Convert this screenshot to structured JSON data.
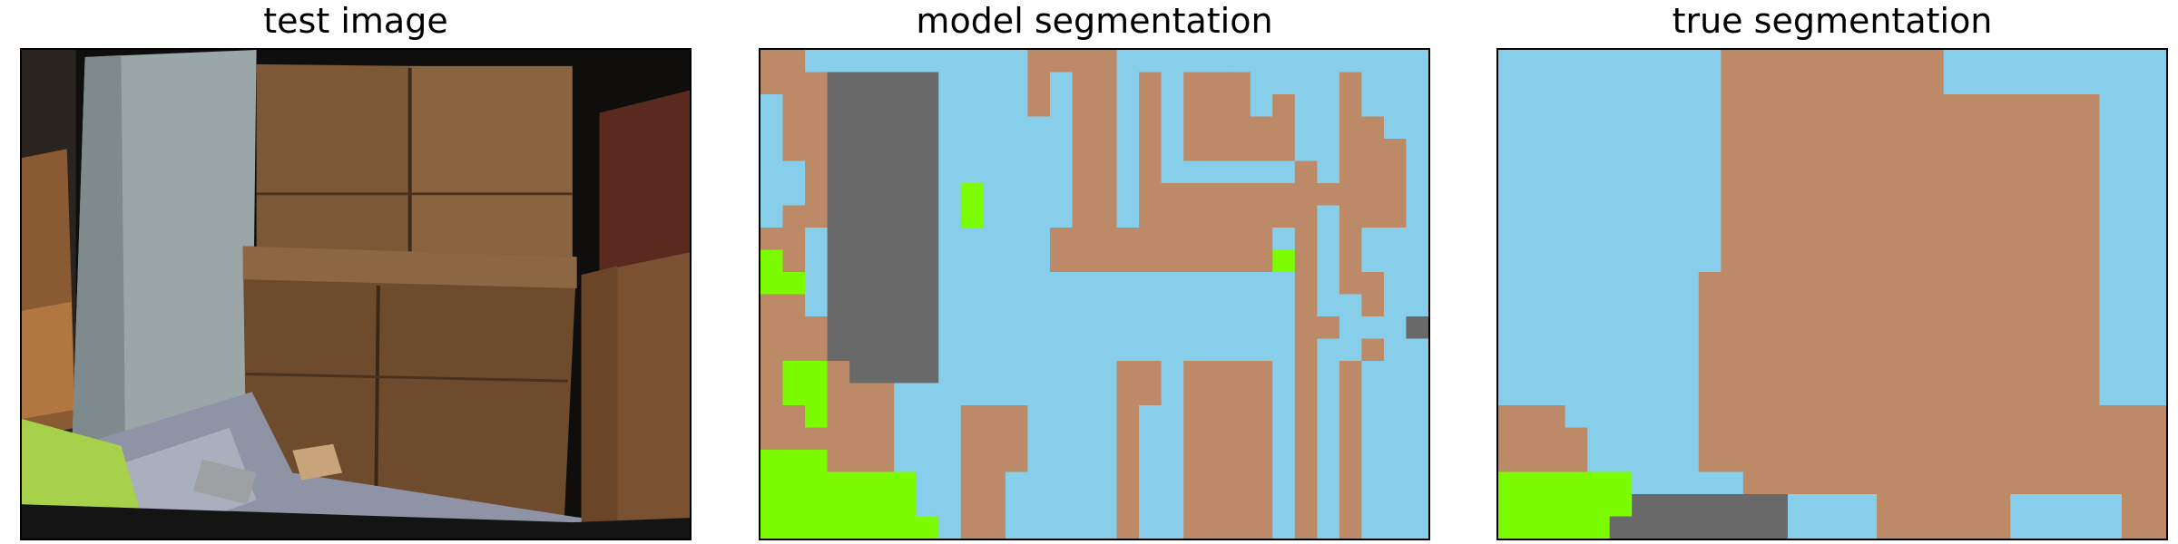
{
  "panels": [
    {
      "title": "test image"
    },
    {
      "title": "model segmentation"
    },
    {
      "title": "true segmentation"
    }
  ],
  "palette": {
    "wood": "#bc8a66",
    "background": "#87ceeb",
    "floor_green": "#7cfc00",
    "dark_gray": "#696969"
  },
  "grid": {
    "cols": 30,
    "rows": 22
  },
  "model_segmentation": [
    "BBWWWWWWWWWWBBBBWWWWWWWWWWWWWW",
    "BBBGGGGGWWWWBWBBWBWBBBWWWWBWWW",
    "WBBGGGGGWWWWBWBBWBWBBBWBWWBWWW",
    "WBBGGGGGWWWWWWBBWBWBBBBBWWBBWW",
    "WBBGGGGGWWWWWWBBWBWBBBBBWWBBBW",
    "WWBGGGGGWWWWWWBBWBWWWWWWBWBBBW",
    "WWBGGGGGWFWWWWBBWBBBBBBBBBBBBW",
    "WBBGGGGGWFWWWWBBWBBBBBBBBWBBBW",
    "BBWGGGGGWWWWWBBBBBBBBBBWBWBWWW",
    "FBWGGGGGWWWWWBBBBBBBBBBFBWBWWW",
    "FFWGGGGGWWWWWWWWWWWWWWWWBWBBWW",
    "BBWGGGGGWWWWWWWWWWWWWWWWBWWBWW",
    "BBBGGGGGWWWWWWWWWWWWWWWWBBWWWG",
    "BBBGGGGGWWWWWWWWWWWWWWWWBWWBWW",
    "BFFBGGGGWWWWWWWWBBWBBBBWBWBWWW",
    "BFFBBBWWWWWWWWWWBBWBBBBWBWBWWW",
    "BBFBBBWWWBBBWWWWBWWBBBBWBWBWWW",
    "BBBBBBWWWBBBWWWWBWWBBBBWBWBWWW",
    "FFFBBBWWWBBBWWWWBWWBBBBWBWBWWW",
    "FFFFFFFWWBBWWWWWBWWBBBBWBWBWWW",
    "FFFFFFFWWBBWWWWWBWWBBBBWBWBWWW",
    "FFFFFFFFWBBWWWWWBWWBBBBWBWBWWW"
  ],
  "true_segmentation": [
    "WWWWWWWWWWBBBBBBBBBBWWWWWWWWWW",
    "WWWWWWWWWWBBBBBBBBBBWWWWWWWWWW",
    "WWWWWWWWWWBBBBBBBBBBBBBBBBBWWW",
    "WWWWWWWWWWBBBBBBBBBBBBBBBBBWWW",
    "WWWWWWWWWWBBBBBBBBBBBBBBBBBWWW",
    "WWWWWWWWWWBBBBBBBBBBBBBBBBBWWW",
    "WWWWWWWWWWBBBBBBBBBBBBBBBBBWWW",
    "WWWWWWWWWWBBBBBBBBBBBBBBBBBWWW",
    "WWWWWWWWWWBBBBBBBBBBBBBBBBBWWW",
    "WWWWWWWWWWBBBBBBBBBBBBBBBBBWWW",
    "WWWWWWWWWBBBBBBBBBBBBBBBBBBWWW",
    "WWWWWWWWWBBBBBBBBBBBBBBBBBBWWW",
    "WWWWWWWWWBBBBBBBBBBBBBBBBBBWWW",
    "WWWWWWWWWBBBBBBBBBBBBBBBBBBWWW",
    "WWWWWWWWWBBBBBBBBBBBBBBBBBBWWW",
    "WWWWWWWWWBBBBBBBBBBBBBBBBBBWWW",
    "BBBWWWWWWBBBBBBBBBBBBBBBBBBBBB",
    "BBBBWWWWWBBBBBBBBBBBBBBBBBBBBB",
    "BBBBWWWWWBBBBBBBBBBBBBBBBBBBBB",
    "FFFFFFWWWWWBBBBBBBBBBBBBBBBBBB",
    "FFFFFFGGGGGGGWWWWBBBBBBWWWWWBB",
    "FFFFFGGGGGGGGWWWWBBBBBBWWWWWBB"
  ]
}
